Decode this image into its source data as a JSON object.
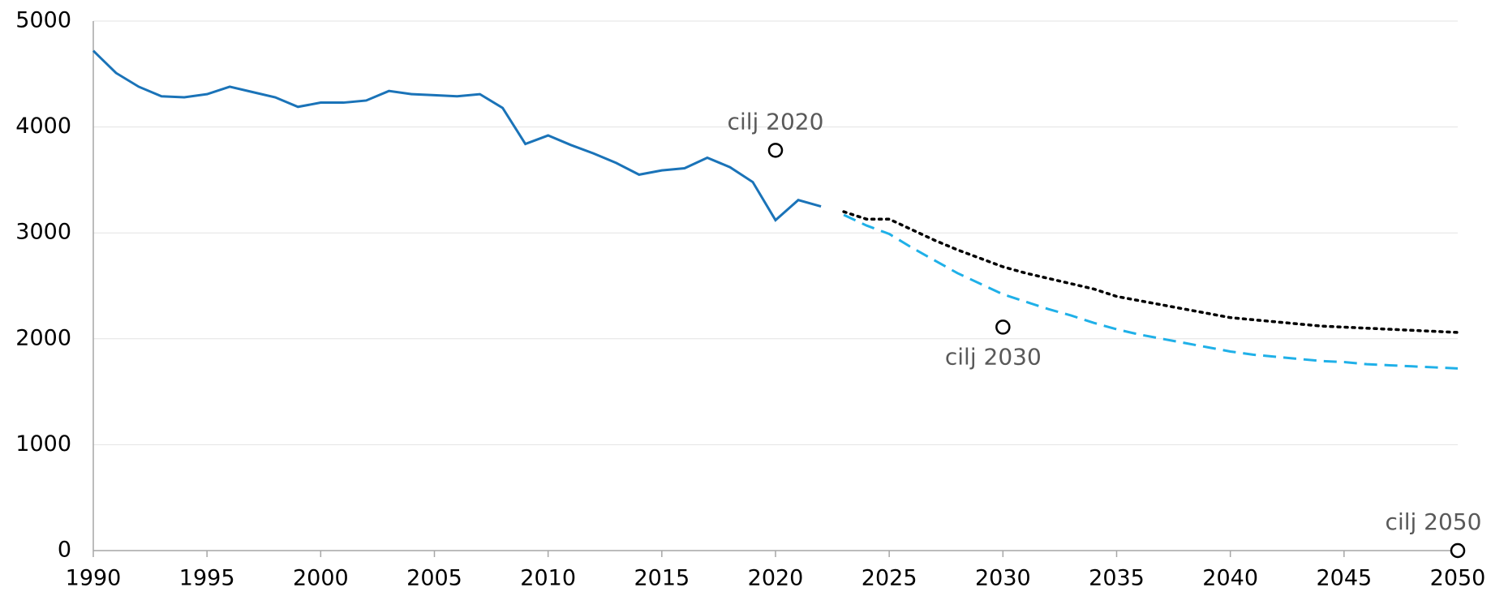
{
  "chart_data": {
    "type": "line",
    "x": [
      1990,
      1991,
      1992,
      1993,
      1994,
      1995,
      1996,
      1997,
      1998,
      1999,
      2000,
      2001,
      2002,
      2003,
      2004,
      2005,
      2006,
      2007,
      2008,
      2009,
      2010,
      2011,
      2012,
      2013,
      2014,
      2015,
      2016,
      2017,
      2018,
      2019,
      2020,
      2021,
      2022,
      2023,
      2024,
      2025,
      2026,
      2027,
      2028,
      2029,
      2030,
      2031,
      2032,
      2033,
      2034,
      2035,
      2036,
      2037,
      2038,
      2039,
      2040,
      2041,
      2042,
      2043,
      2044,
      2045,
      2046,
      2047,
      2048,
      2049,
      2050
    ],
    "series": [
      {
        "color": "#1a73b8",
        "style": "solid",
        "values": [
          4720,
          4510,
          4380,
          4290,
          4280,
          4310,
          4380,
          4330,
          4280,
          4190,
          4230,
          4230,
          4250,
          4340,
          4310,
          4300,
          4290,
          4310,
          4180,
          3840,
          3920,
          3830,
          3750,
          3660,
          3550,
          3590,
          3610,
          3710,
          3620,
          3480,
          3120,
          3310,
          3250,
          null,
          null,
          null,
          null,
          null,
          null,
          null,
          null,
          null,
          null,
          null,
          null,
          null,
          null,
          null,
          null,
          null,
          null,
          null,
          null,
          null,
          null,
          null,
          null,
          null,
          null,
          null,
          null
        ]
      },
      {
        "color": "#000000",
        "style": "dotted",
        "values": [
          null,
          null,
          null,
          null,
          null,
          null,
          null,
          null,
          null,
          null,
          null,
          null,
          null,
          null,
          null,
          null,
          null,
          null,
          null,
          null,
          null,
          null,
          null,
          null,
          null,
          null,
          null,
          null,
          null,
          null,
          null,
          null,
          null,
          3200,
          3130,
          3130,
          3030,
          2930,
          2840,
          2760,
          2680,
          2620,
          2570,
          2520,
          2470,
          2400,
          2360,
          2320,
          2280,
          2240,
          2200,
          2180,
          2160,
          2140,
          2120,
          2110,
          2100,
          2090,
          2080,
          2070,
          2060
        ]
      },
      {
        "color": "#1fb0e8",
        "style": "dashed",
        "values": [
          null,
          null,
          null,
          null,
          null,
          null,
          null,
          null,
          null,
          null,
          null,
          null,
          null,
          null,
          null,
          null,
          null,
          null,
          null,
          null,
          null,
          null,
          null,
          null,
          null,
          null,
          null,
          null,
          null,
          null,
          null,
          null,
          null,
          3170,
          3070,
          2990,
          2860,
          2740,
          2620,
          2520,
          2420,
          2350,
          2280,
          2220,
          2150,
          2090,
          2040,
          2000,
          1960,
          1920,
          1880,
          1850,
          1830,
          1810,
          1790,
          1780,
          1760,
          1750,
          1740,
          1730,
          1720
        ]
      }
    ],
    "targets": [
      {
        "label": "cilj 2020",
        "x": 2020,
        "value": 3780
      },
      {
        "label": "cilj 2030",
        "x": 2030,
        "value": 2110
      },
      {
        "label": "cilj 2050",
        "x": 2050,
        "value": 0
      }
    ],
    "xlim": [
      1990,
      2050
    ],
    "xticks": [
      1990,
      1995,
      2000,
      2005,
      2010,
      2015,
      2020,
      2025,
      2030,
      2035,
      2040,
      2045,
      2050
    ],
    "ylim": [
      0,
      5000
    ],
    "yticks": [
      0,
      1000,
      2000,
      3000,
      4000,
      5000
    ],
    "grid": true
  }
}
